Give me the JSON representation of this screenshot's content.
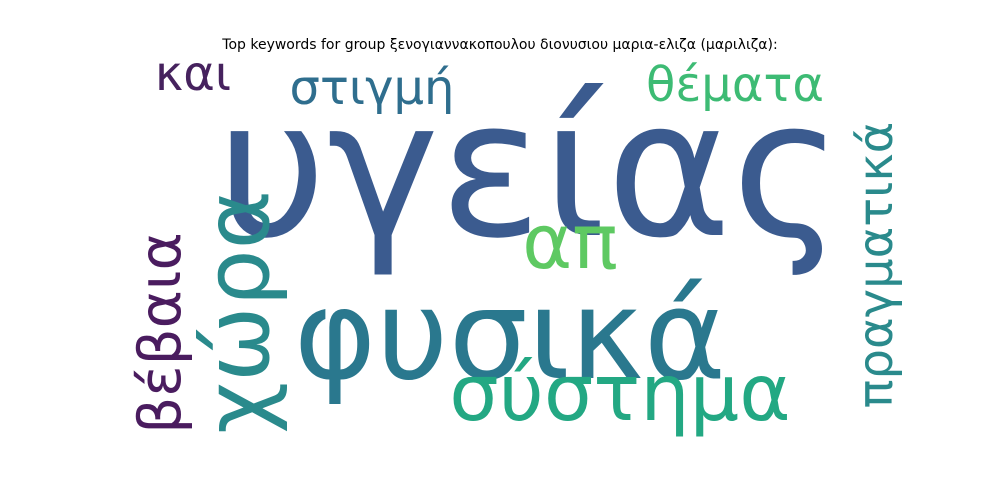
{
  "chart_data": {
    "type": "wordcloud",
    "title": "Top keywords for group ξενογιαννακοπουλου διονυσιου μαρια-ελιζα (μαριλιζα):",
    "words": [
      {
        "text": "υγείας",
        "weight": 1.0,
        "color": "#3b5b8f",
        "orientation": "horizontal"
      },
      {
        "text": "φυσικά",
        "weight": 0.8,
        "color": "#2a788e",
        "orientation": "horizontal"
      },
      {
        "text": "σύστημα",
        "weight": 0.55,
        "color": "#23a883",
        "orientation": "horizontal"
      },
      {
        "text": "χώρα",
        "weight": 0.5,
        "color": "#2a8a8c",
        "orientation": "vertical"
      },
      {
        "text": "απ",
        "weight": 0.45,
        "color": "#5ec962",
        "orientation": "horizontal"
      },
      {
        "text": "πραγματικά",
        "weight": 0.38,
        "color": "#2a8a8c",
        "orientation": "vertical"
      },
      {
        "text": "βέβαια",
        "weight": 0.35,
        "color": "#4a1c5f",
        "orientation": "vertical"
      },
      {
        "text": "θέματα",
        "weight": 0.33,
        "color": "#3dbb74",
        "orientation": "horizontal"
      },
      {
        "text": "στιγμή",
        "weight": 0.33,
        "color": "#2f6e8e",
        "orientation": "horizontal"
      },
      {
        "text": "και",
        "weight": 0.3,
        "color": "#46225e",
        "orientation": "horizontal"
      }
    ]
  }
}
